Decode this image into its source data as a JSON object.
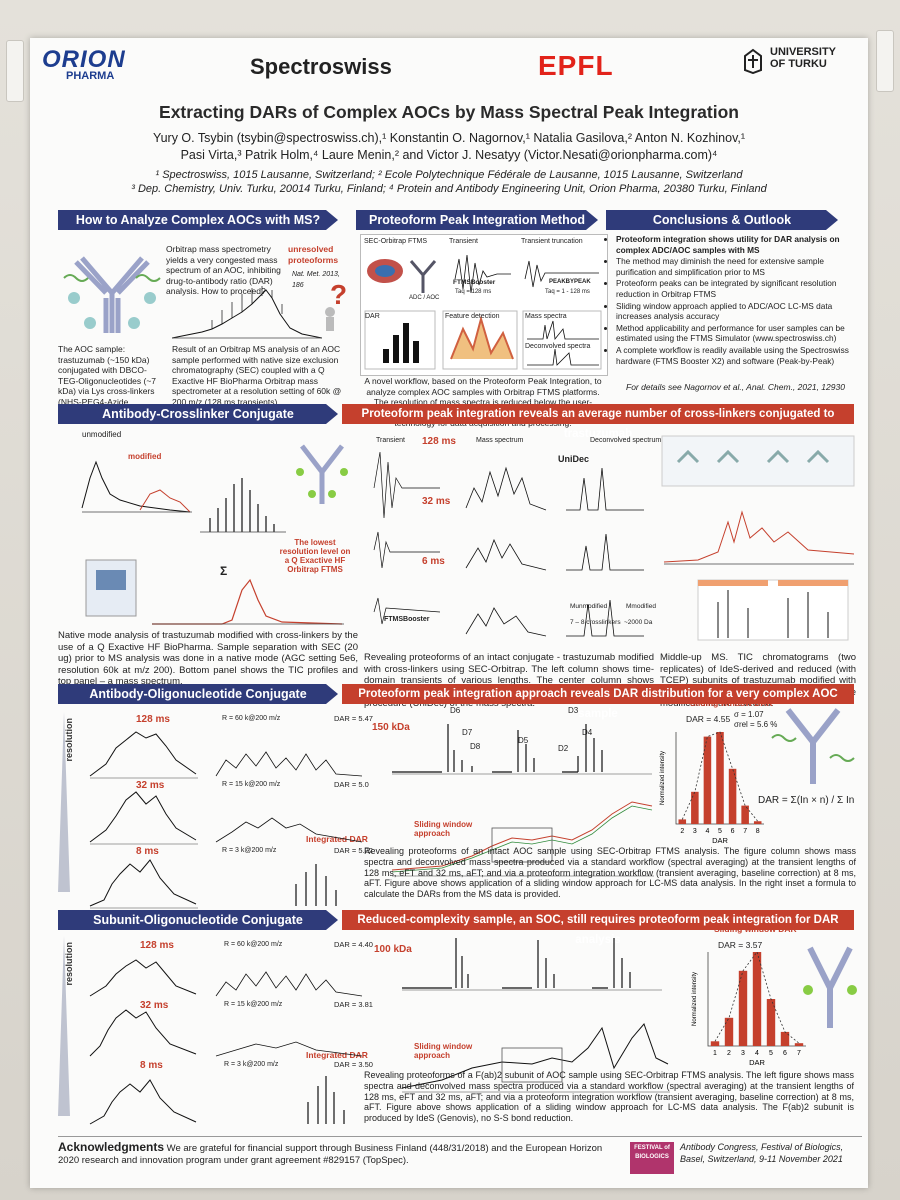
{
  "logos": {
    "orion": "ORION",
    "orion_sub": "PHARMA",
    "spectroswiss": "Spectroswiss",
    "epfl": "EPFL",
    "turku_1": "UNIVERSITY",
    "turku_2": "OF TURKU"
  },
  "title": "Extracting DARs of Complex AOCs by Mass Spectral Peak Integration",
  "authors": {
    "line1": "Yury O. Tsybin (tsybin@spectroswiss.ch),¹ Konstantin O. Nagornov,¹ Natalia Gasilova,² Anton N. Kozhinov,¹",
    "line2": "Pasi Virta,³ Patrik Holm,⁴ Laure Menin,² and Victor J. Nesatyy (Victor.Nesati@orionpharma.com)⁴"
  },
  "affiliations": {
    "line1": "¹ Spectroswiss, 1015 Lausanne, Switzerland; ² Ecole Polytechnique Fédérale de Lausanne, 1015 Lausanne, Switzerland",
    "line2": "³ Dep. Chemistry, Univ. Turku, 20014 Turku, Finland; ⁴ Protein and Antibody Engineering Unit, Orion Pharma, 20380 Turku, Finland"
  },
  "sections": {
    "s1": "How to Analyze Complex AOCs with MS?",
    "s2": "Proteoform Peak Integration Method",
    "s3": "Conclusions & Outlook",
    "s4": "Antibody-Crosslinker Conjugate",
    "s4r": "Proteoform peak integration reveals an average number of cross-linkers conjugated to trastuzumab",
    "s5": "Antibody-Oligonucleotide Conjugate",
    "s5r": "Proteoform peak integration approach reveals DAR distribution for a very complex AOC sample",
    "s6": "Subunit-Oligonucleotide Conjugate",
    "s6r": "Reduced-complexity sample, an SOC, still requires proteoform peak integration for DAR analysis"
  },
  "intro": {
    "orbitrap_note": "Orbitrap mass spectrometry yields a very congested mass spectrum of an AOC, inhibiting drug-to-antibody ratio (DAR) analysis. How to proceed?",
    "unresolved": "unresolved proteoforms",
    "ref": "Nat. Met. 2013, 186",
    "aoc_sample": "The AOC sample: trastuzumab (~150 kDa) conjugated with DBCO-TEG-Oligonucleotides (~7 kDa) via Lys cross-linkers (NHS-PEG4-Azide, C11H18N4O6, 273 Da).",
    "result": "Result of an Orbitrap MS analysis of an AOC sample performed with native size exclusion chromatography (SEC) coupled with a Q Exactive HF BioPharma Orbitrap mass spectrometer at a resolution setting of 60k @ 200 m/z (128 ms transients)."
  },
  "method": {
    "boxes": [
      "SEC-Orbitrap FTMS",
      "Transient",
      "Transient truncation",
      "DAR",
      "Feature detection",
      "Mass spectra",
      "Deconvolved spectra"
    ],
    "ftms_booster": "FTMSBooster",
    "taq": "Taq = 128 ms",
    "taq2": "Taq = 1 - 128 ms",
    "peakbypeak": "PEAKBYPEAK",
    "adc_aoc": "ADC / AOC",
    "caption": "A novel workflow, based on the Proteoform Peak Integration, to analyze complex AOC samples with Orbitrap FTMS platforms. The resolution of mass spectra is reduced below the user-accessible Orbitrap MS capabilities using unique Spectroswiss technology for data acquisition and processing."
  },
  "conclusions": [
    "Proteoform integration shows utility for DAR analysis on complex ADC/AOC samples with MS",
    "The method may diminish the need for extensive sample purification and simplification prior to MS",
    "Proteoform peaks can be integrated by significant resolution reduction in Orbitrap FTMS",
    "Sliding window approach applied to ADC/AOC LC-MS data increases analysis accuracy",
    "Method applicability and performance for user samples can be estimated using the FTMS Simulator (www.spectroswiss.ch)",
    "A complete workflow is readily available using the Spectroswiss hardware (FTMS Booster X2) and software (Peak-by-Peak)"
  ],
  "conclusions_ref": "For details see Nagornov et al., Anal. Chem., 2021, 12930",
  "acc": {
    "unmodified": "unmodified",
    "modified": "modified",
    "sigma": "Σ",
    "lowest": "The lowest resolution level on a Q Exactive HF Orbitrap FTMS",
    "caption_left": "Native mode analysis of trastuzumab modified with cross-linkers by the use of a Q Exactive HF BioPharma. Sample separation with SEC (20 ug) prior to MS analysis was done in a native mode (AGC setting 5e6, resolution 60k at m/z 200). Bottom panel shows the TIC profiles and top panel – a mass spectrum.",
    "t128": "128 ms",
    "t32": "32 ms",
    "t6": "6 ms",
    "transient": "Transient",
    "mass_spectrum": "Mass spectrum",
    "deconvolved": "Deconvolved spectrum",
    "unidec": "UniDec",
    "crosslinkers": "7 – 8 crosslinkers",
    "da2000": "~2000 Da",
    "m_unmod": "Munmodified",
    "m_mod": "Mmodified",
    "caption_mid": "Revealing proteoforms of an intact conjugate - trastuzumab modified with cross-linkers using SEC-Orbitrap. The left column shows time-domain transients of various lengths. The center column shows mass spectra and the right column shows results of a deconvolution procedure (UniDec) of the mass spectra.",
    "caption_right": "Middle-up MS. TIC chromatograms (two replicates) of IdeS-derived and reduced (with TCEP) subunits of trastuzumab modified with cross-linkers obtained with an Orbitrap. The modifications are revealed."
  },
  "aoc": {
    "resolution": "resolution",
    "t128": "128 ms",
    "t32": "32 ms",
    "t8": "8 ms",
    "r60": "R = 60 k@200 m/z",
    "r15": "R = 15 k@200 m/z",
    "r3": "R = 3 k@200 m/z",
    "dar1": "DAR = 5.47",
    "dar2": "DAR = 5.0",
    "dar3": "DAR = 5.22",
    "kda150": "150 kDa",
    "peaks": [
      "D6",
      "D7",
      "D8",
      "D5",
      "D3",
      "D4",
      "D2"
    ],
    "sliding": "Sliding window approach",
    "integrated": "Integrated DAR",
    "sw_title": "Sliding window DAR",
    "sw_dar": "DAR = 4.55",
    "sigma": "σ = 1.07",
    "sigma_rel": "σrel = 5.6 %",
    "formula": "DAR = Σ(In × n) / Σ In",
    "caption": "Revealing proteoforms of an intact AOC sample using SEC-Orbitrap FTMS analysis. The figure column shows mass spectra and deconvolved mass spectra produced via a standard workflow (spectral averaging) at the transient lengths of 128 ms, eFT and 32 ms, aFT; and via a proteoform integration workflow (transient averaging, baseline correction) at 8 ms, aFT. Figure above shows application of a sliding window approach for LC-MS data analysis. In the right inset a formula to calculate the DARs from the MS data is provided."
  },
  "soc": {
    "resolution": "resolution",
    "t128": "128 ms",
    "t32": "32 ms",
    "t8": "8 ms",
    "r60": "R = 60 k@200 m/z",
    "r15": "R = 15 k@200 m/z",
    "r3": "R = 3 k@200 m/z",
    "dar1": "DAR = 4.40",
    "dar2": "DAR = 3.81",
    "dar3": "DAR = 3.50",
    "kda100": "100 kDa",
    "sliding": "Sliding window approach",
    "integrated": "Integrated DAR",
    "sw_title": "Sliding window DAR",
    "sw_dar": "DAR = 3.57",
    "caption": "Revealing proteoforms of a F(ab)2 subunit of AOC sample using SEC-Orbitrap FTMS analysis. The left figure shows mass spectra and deconvolved mass spectra produced via a standard workflow (spectral averaging) at the transient lengths of 128 ms, eFT and 32 ms, aFT; and via a proteoform integration workflow (transient averaging, baseline correction) at 8 ms, aFT. Figure above shows application of a sliding window approach for LC-MS data analysis. The F(ab)2 subunit is produced by IdeS (Genovis), no S-S bond reduction."
  },
  "ack": {
    "heading": "Acknowledgments",
    "text": "We are grateful for financial support through Business Finland (448/31/2018) and the European Horizon 2020 research and innovation program under grant agreement #829157 (TopSpec).",
    "festival": "FESTIVAL of BIOLOGICS",
    "congress": "Antibody Congress, Festival of Biologics, Basel, Switzerland, 9-11 November 2021"
  },
  "chart_data": [
    {
      "type": "bar",
      "title": "Sliding window DAR",
      "categories": [
        "2",
        "3",
        "4",
        "5",
        "6",
        "7",
        "8"
      ],
      "values": [
        0.05,
        0.35,
        0.95,
        1.0,
        0.6,
        0.2,
        0.03
      ],
      "xlabel": "DAR",
      "ylabel": "Normalized intensity",
      "ylim": [
        0,
        1
      ]
    },
    {
      "type": "bar",
      "title": "Sliding window DAR",
      "categories": [
        "1",
        "2",
        "3",
        "4",
        "5",
        "6",
        "7"
      ],
      "values": [
        0.05,
        0.3,
        0.8,
        1.0,
        0.5,
        0.15,
        0.03
      ],
      "xlabel": "DAR",
      "ylabel": "Normalized intensity",
      "ylim": [
        0,
        1
      ]
    }
  ],
  "colors": {
    "navy": "#2f3b7a",
    "red": "#c5402d",
    "orion": "#1d3d8f",
    "epfl": "#e2231a"
  }
}
